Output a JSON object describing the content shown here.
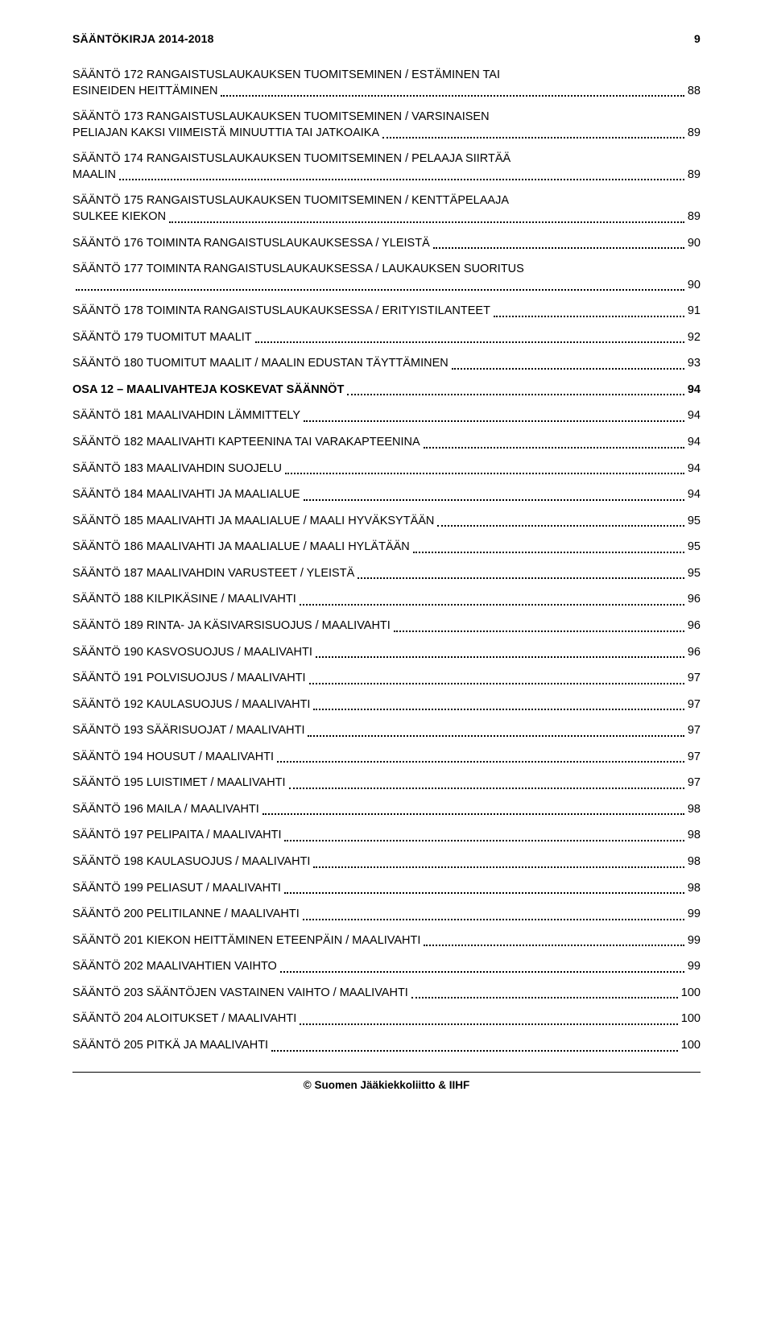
{
  "header": {
    "title": "SÄÄNTÖKIRJA 2014-2018",
    "pageNumber": "9"
  },
  "entries": [
    {
      "kind": "multi",
      "line1": "SÄÄNTÖ 172 RANGAISTUSLAUKAUKSEN TUOMITSEMINEN / ESTÄMINEN TAI",
      "line2": "ESINEIDEN HEITTÄMINEN",
      "page": "88"
    },
    {
      "kind": "multi",
      "line1": "SÄÄNTÖ 173 RANGAISTUSLAUKAUKSEN TUOMITSEMINEN / VARSINAISEN",
      "line2": "PELIAJAN KAKSI VIIMEISTÄ MINUUTTIA TAI JATKOAIKA",
      "page": "89"
    },
    {
      "kind": "multi",
      "line1": "SÄÄNTÖ 174 RANGAISTUSLAUKAUKSEN TUOMITSEMINEN / PELAAJA SIIRTÄÄ",
      "line2": "MAALIN",
      "page": "89"
    },
    {
      "kind": "multi",
      "line1": "SÄÄNTÖ 175 RANGAISTUSLAUKAUKSEN TUOMITSEMINEN / KENTTÄPELAAJA",
      "line2": "SULKEE KIEKON",
      "page": "89"
    },
    {
      "kind": "single",
      "label": "SÄÄNTÖ 176 TOIMINTA RANGAISTUSLAUKAUKSESSA / YLEISTÄ",
      "page": "90"
    },
    {
      "kind": "multi",
      "line1": "SÄÄNTÖ 177 TOIMINTA RANGAISTUSLAUKAUKSESSA / LAUKAUKSEN SUORITUS",
      "line2": "",
      "page": "90"
    },
    {
      "kind": "single",
      "label": "SÄÄNTÖ 178 TOIMINTA RANGAISTUSLAUKAUKSESSA / ERITYISTILANTEET",
      "page": "91"
    },
    {
      "kind": "single",
      "label": "SÄÄNTÖ 179 TUOMITUT MAALIT",
      "page": "92"
    },
    {
      "kind": "single",
      "label": "SÄÄNTÖ 180 TUOMITUT MAALIT / MAALIN EDUSTAN TÄYTTÄMINEN",
      "page": "93"
    },
    {
      "kind": "section",
      "label": "OSA 12 – MAALIVAHTEJA KOSKEVAT SÄÄNNÖT",
      "page": "94"
    },
    {
      "kind": "single",
      "label": "SÄÄNTÖ 181 MAALIVAHDIN LÄMMITTELY",
      "page": "94"
    },
    {
      "kind": "single",
      "label": "SÄÄNTÖ 182 MAALIVAHTI KAPTEENINA TAI VARAKAPTEENINA",
      "page": "94"
    },
    {
      "kind": "single",
      "label": "SÄÄNTÖ 183 MAALIVAHDIN SUOJELU",
      "page": "94"
    },
    {
      "kind": "single",
      "label": "SÄÄNTÖ 184 MAALIVAHTI JA MAALIALUE",
      "page": "94"
    },
    {
      "kind": "single",
      "label": "SÄÄNTÖ 185 MAALIVAHTI JA MAALIALUE / MAALI HYVÄKSYTÄÄN",
      "page": "95"
    },
    {
      "kind": "single",
      "label": "SÄÄNTÖ 186 MAALIVAHTI JA MAALIALUE / MAALI HYLÄTÄÄN",
      "page": "95"
    },
    {
      "kind": "single",
      "label": "SÄÄNTÖ 187 MAALIVAHDIN VARUSTEET / YLEISTÄ",
      "page": "95"
    },
    {
      "kind": "single",
      "label": "SÄÄNTÖ 188 KILPIKÄSINE / MAALIVAHTI",
      "page": "96"
    },
    {
      "kind": "single",
      "label": "SÄÄNTÖ 189 RINTA- JA KÄSIVARSISUOJUS / MAALIVAHTI",
      "page": "96"
    },
    {
      "kind": "single",
      "label": "SÄÄNTÖ 190 KASVOSUOJUS / MAALIVAHTI",
      "page": "96"
    },
    {
      "kind": "single",
      "label": "SÄÄNTÖ 191 POLVISUOJUS / MAALIVAHTI",
      "page": "97"
    },
    {
      "kind": "single",
      "label": "SÄÄNTÖ 192 KAULASUOJUS / MAALIVAHTI",
      "page": "97"
    },
    {
      "kind": "single",
      "label": "SÄÄNTÖ 193 SÄÄRISUOJAT / MAALIVAHTI",
      "page": "97"
    },
    {
      "kind": "single",
      "label": "SÄÄNTÖ 194 HOUSUT / MAALIVAHTI",
      "page": "97"
    },
    {
      "kind": "single",
      "label": "SÄÄNTÖ 195 LUISTIMET / MAALIVAHTI",
      "page": "97"
    },
    {
      "kind": "single",
      "label": "SÄÄNTÖ 196 MAILA / MAALIVAHTI",
      "page": "98"
    },
    {
      "kind": "single",
      "label": "SÄÄNTÖ 197 PELIPAITA / MAALIVAHTI",
      "page": "98"
    },
    {
      "kind": "single",
      "label": "SÄÄNTÖ 198 KAULASUOJUS / MAALIVAHTI",
      "page": "98"
    },
    {
      "kind": "single",
      "label": "SÄÄNTÖ 199 PELIASUT / MAALIVAHTI",
      "page": "98"
    },
    {
      "kind": "single",
      "label": "SÄÄNTÖ 200 PELITILANNE / MAALIVAHTI",
      "page": "99"
    },
    {
      "kind": "single",
      "label": "SÄÄNTÖ 201 KIEKON HEITTÄMINEN ETEENPÄIN / MAALIVAHTI",
      "page": "99"
    },
    {
      "kind": "single",
      "label": "SÄÄNTÖ 202 MAALIVAHTIEN VAIHTO",
      "page": "99"
    },
    {
      "kind": "single",
      "label": "SÄÄNTÖ 203 SÄÄNTÖJEN VASTAINEN VAIHTO / MAALIVAHTI",
      "page": "100"
    },
    {
      "kind": "single",
      "label": "SÄÄNTÖ 204 ALOITUKSET / MAALIVAHTI",
      "page": "100"
    },
    {
      "kind": "single",
      "label": "SÄÄNTÖ 205 PITKÄ JA MAALIVAHTI",
      "page": "100"
    }
  ],
  "footer": "© Suomen Jääkiekkoliitto & IIHF"
}
